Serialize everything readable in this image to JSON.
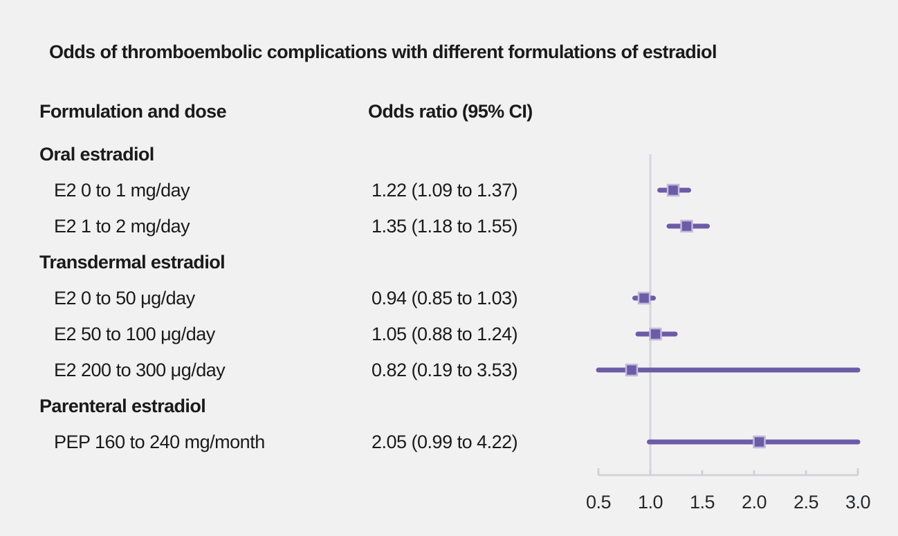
{
  "figure": {
    "title": "Odds of thromboembolic complications with different formulations of estradiol",
    "columns": {
      "formulation": "Formulation and dose",
      "odds_ratio": "Odds ratio (95% CI)"
    }
  },
  "rows": [
    {
      "type": "group",
      "label": "Oral estradiol"
    },
    {
      "type": "item",
      "label": "E2 0 to 1 mg/day",
      "value_text": "1.22 (1.09 to 1.37)",
      "or": 1.22,
      "ci_low": 1.09,
      "ci_high": 1.37
    },
    {
      "type": "item",
      "label": "E2 1 to 2 mg/day",
      "value_text": "1.35 (1.18 to 1.55)",
      "or": 1.35,
      "ci_low": 1.18,
      "ci_high": 1.55
    },
    {
      "type": "group",
      "label": "Transdermal estradiol"
    },
    {
      "type": "item",
      "label": "E2 0 to 50 μg/day",
      "value_text": "0.94 (0.85 to 1.03)",
      "or": 0.94,
      "ci_low": 0.85,
      "ci_high": 1.03
    },
    {
      "type": "item",
      "label": "E2 50 to 100 μg/day",
      "value_text": "1.05 (0.88 to 1.24)",
      "or": 1.05,
      "ci_low": 0.88,
      "ci_high": 1.24
    },
    {
      "type": "item",
      "label": "E2 200 to 300 μg/day",
      "value_text": "0.82 (0.19 to 3.53)",
      "or": 0.82,
      "ci_low": 0.19,
      "ci_high": 3.53
    },
    {
      "type": "group",
      "label": "Parenteral estradiol"
    },
    {
      "type": "item",
      "label": "PEP 160 to 240 mg/month",
      "value_text": "2.05 (0.99 to 4.22)",
      "or": 2.05,
      "ci_low": 0.99,
      "ci_high": 4.22
    }
  ],
  "chart_data": {
    "type": "forest",
    "title": "Odds of thromboembolic complications with different formulations of estradiol",
    "xlabel": "Odds ratio (95% CI)",
    "xlim": [
      0.5,
      3.0
    ],
    "x_ticks": [
      0.5,
      1.0,
      1.5,
      2.0,
      2.5,
      3.0
    ],
    "reference_line": 1.0,
    "grid": false,
    "legend": "none",
    "points": [
      {
        "group": "Oral estradiol",
        "label": "E2 0 to 1 mg/day",
        "or": 1.22,
        "ci_low": 1.09,
        "ci_high": 1.37
      },
      {
        "group": "Oral estradiol",
        "label": "E2 1 to 2 mg/day",
        "or": 1.35,
        "ci_low": 1.18,
        "ci_high": 1.55
      },
      {
        "group": "Transdermal estradiol",
        "label": "E2 0 to 50 μg/day",
        "or": 0.94,
        "ci_low": 0.85,
        "ci_high": 1.03
      },
      {
        "group": "Transdermal estradiol",
        "label": "E2 50 to 100 μg/day",
        "or": 1.05,
        "ci_low": 0.88,
        "ci_high": 1.24
      },
      {
        "group": "Transdermal estradiol",
        "label": "E2 200 to 300 μg/day",
        "or": 0.82,
        "ci_low": 0.19,
        "ci_high": 3.53
      },
      {
        "group": "Parenteral estradiol",
        "label": "PEP 160 to 240 mg/month",
        "or": 2.05,
        "ci_low": 0.99,
        "ci_high": 4.22
      }
    ]
  },
  "colors": {
    "background": "#f2f1f1",
    "text": "#1a1a1a",
    "tick_label": "#26282a",
    "accent_purple": "#6b5ca7",
    "marker_outline": "#c2b9dc",
    "reference_line": "#d4d7dd",
    "axis_line": "#ccd2d9"
  }
}
